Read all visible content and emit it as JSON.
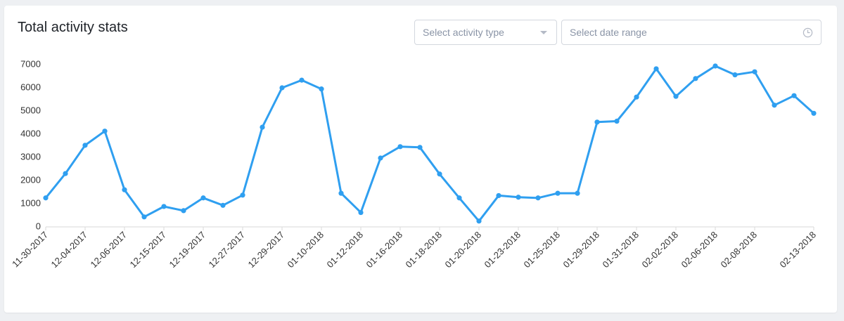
{
  "card": {
    "title": "Total activity stats",
    "activity_select": {
      "placeholder": "Select activity type",
      "icon": "caret-down-icon"
    },
    "date_select": {
      "placeholder": "Select date range",
      "icon": "clock-icon"
    }
  },
  "colors": {
    "line": "#2f9ff0",
    "axis": "#d9d9d9",
    "text": "#333333"
  },
  "chart_data": {
    "type": "line",
    "title": "",
    "xlabel": "",
    "ylabel": "",
    "ylim": [
      0,
      7000
    ],
    "yticks": [
      0,
      1000,
      2000,
      3000,
      4000,
      5000,
      6000,
      7000
    ],
    "grid": false,
    "x_tick_labels": [
      "11-30-2017",
      "12-04-2017",
      "12-06-2017",
      "12-15-2017",
      "12-19-2017",
      "12-27-2017",
      "12-29-2017",
      "01-10-2018",
      "01-12-2018",
      "01-16-2018",
      "01-18-2018",
      "01-20-2018",
      "01-23-2018",
      "01-25-2018",
      "01-29-2018",
      "01-31-2018",
      "02-02-2018",
      "02-06-2018",
      "02-08-2018",
      "02-13-2018"
    ],
    "x_tick_positions": [
      0,
      2,
      4,
      6,
      8,
      10,
      12,
      14,
      16,
      18,
      20,
      22,
      24,
      26,
      28,
      30,
      32,
      34,
      36,
      39
    ],
    "points": 40,
    "values": [
      1250,
      2300,
      3520,
      4130,
      1600,
      430,
      880,
      700,
      1250,
      930,
      1370,
      4300,
      6000,
      6330,
      5950,
      1450,
      620,
      2970,
      3460,
      3430,
      2280,
      1250,
      250,
      1350,
      1280,
      1250,
      1450,
      1450,
      4520,
      4560,
      5600,
      6820,
      5630,
      6400,
      6940,
      6560,
      6690,
      5250,
      5660,
      4900
    ]
  }
}
